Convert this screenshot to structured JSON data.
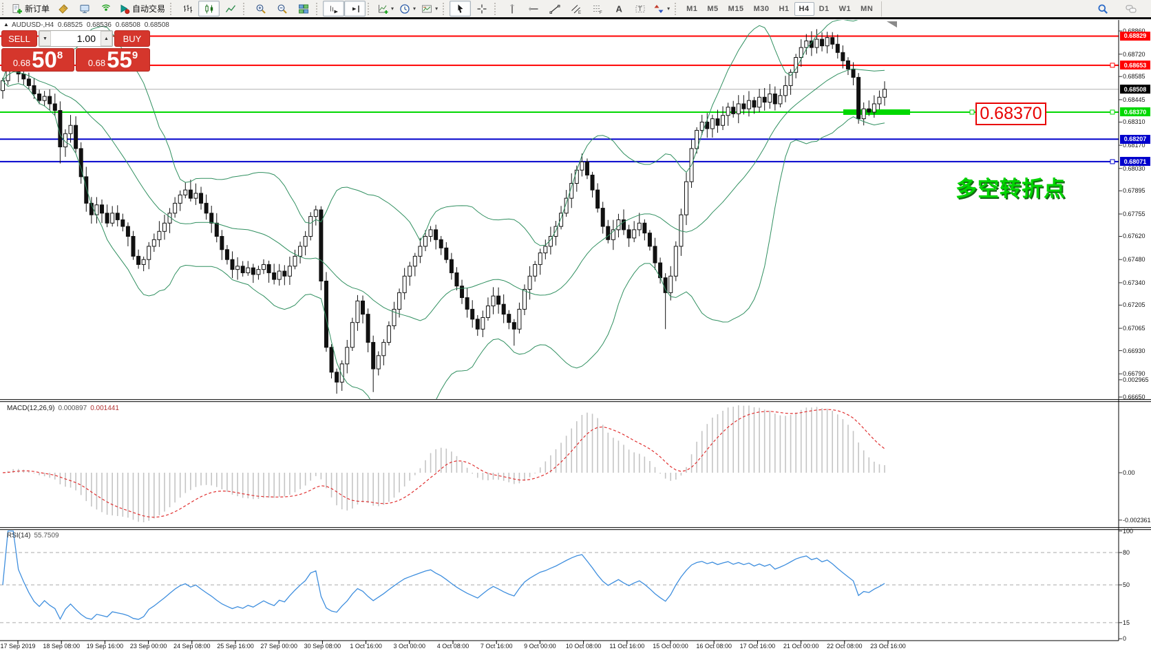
{
  "titlebar": {
    "symbol": "AUDUSD-,H4",
    "open": "0.68525",
    "high": "0.68536",
    "low": "0.68508",
    "close": "0.68508"
  },
  "toolbar": {
    "groups": [
      {
        "items": [
          {
            "name": "new-order-button",
            "icon": "new-order-icon",
            "label": "新订单"
          },
          {
            "name": "styler-button",
            "icon": "price-tag-icon"
          },
          {
            "name": "terminal-button",
            "icon": "monitor-icon"
          },
          {
            "name": "news-button",
            "icon": "signal-icon"
          },
          {
            "name": "autotrade-button",
            "icon": "autotrade-icon",
            "label": "自动交易"
          }
        ]
      },
      {
        "items": [
          {
            "name": "bar-chart-button",
            "icon": "bar-chart-icon"
          },
          {
            "name": "candlestick-button",
            "icon": "candlestick-icon",
            "active": true
          },
          {
            "name": "line-chart-button",
            "icon": "line-chart-icon"
          }
        ]
      },
      {
        "items": [
          {
            "name": "zoom-in-button",
            "icon": "zoom-in-icon"
          },
          {
            "name": "zoom-out-button",
            "icon": "zoom-out-icon"
          },
          {
            "name": "tile-windows-button",
            "icon": "tile-windows-icon"
          }
        ]
      },
      {
        "items": [
          {
            "name": "autoscroll-button",
            "icon": "autoscroll-icon",
            "active": true
          },
          {
            "name": "chart-shift-button",
            "icon": "chart-shift-icon",
            "active": true
          }
        ]
      },
      {
        "items": [
          {
            "name": "indicators-button",
            "icon": "indicators-icon",
            "dropdown": true
          },
          {
            "name": "periods-button",
            "icon": "clock-icon",
            "dropdown": true
          },
          {
            "name": "templates-button",
            "icon": "template-icon",
            "dropdown": true
          }
        ]
      },
      {
        "items": [
          {
            "name": "cursor-button",
            "icon": "cursor-icon",
            "active": true
          },
          {
            "name": "crosshair-button",
            "icon": "crosshair-icon"
          }
        ]
      },
      {
        "items": [
          {
            "name": "vertical-line-button",
            "icon": "vline-icon"
          },
          {
            "name": "horizontal-line-button",
            "icon": "hline-icon"
          },
          {
            "name": "trendline-button",
            "icon": "trendline-icon"
          },
          {
            "name": "channel-button",
            "icon": "channel-icon"
          },
          {
            "name": "fibonacci-button",
            "icon": "fibonacci-icon"
          },
          {
            "name": "text-button",
            "icon": "text-icon"
          },
          {
            "name": "text-label-button",
            "icon": "label-icon"
          },
          {
            "name": "arrows-button",
            "icon": "shapes-icon",
            "dropdown": true
          }
        ]
      }
    ],
    "timeframes": {
      "items": [
        "M1",
        "M5",
        "M15",
        "M30",
        "H1",
        "H4",
        "D1",
        "W1",
        "MN"
      ],
      "active": "H4"
    },
    "right_icons": [
      {
        "name": "search-button",
        "icon": "search-icon"
      },
      {
        "name": "chat-button",
        "icon": "chat-icon"
      }
    ]
  },
  "trade_panel": {
    "sell_label": "SELL",
    "buy_label": "BUY",
    "volume": "1.00",
    "sell": {
      "prefix": "0.68",
      "big": "50",
      "sup": "8"
    },
    "buy": {
      "prefix": "0.68",
      "big": "55",
      "sup": "9"
    }
  },
  "annotation": {
    "text": "多空转折点",
    "color": "#00d400"
  },
  "price_tag": {
    "text": "0.68370"
  },
  "macd_header": {
    "name": "MACD(12,26,9)",
    "value_main": "0.000897",
    "value_signal": "0.001441"
  },
  "rsi_header": {
    "name": "RSI(14)",
    "value": "55.7509"
  },
  "chart_data": [
    {
      "type": "candlestick",
      "symbol": "AUDUSD",
      "timeframe": "H4",
      "ylim": [
        0.6665,
        0.6886
      ],
      "y_ticks": [
        "0.68860",
        "0.68720",
        "0.68585",
        "0.68445",
        "0.68310",
        "0.68170",
        "0.68030",
        "0.67895",
        "0.67755",
        "0.67620",
        "0.67480",
        "0.67340",
        "0.67205",
        "0.67065",
        "0.66930",
        "0.66790",
        "0.66650"
      ],
      "x_labels": [
        "17 Sep 2019",
        "18 Sep 08:00",
        "19 Sep 16:00",
        "23 Sep 00:00",
        "24 Sep 08:00",
        "25 Sep 16:00",
        "27 Sep 00:00",
        "30 Sep 08:00",
        "1 Oct 16:00",
        "3 Oct 00:00",
        "4 Oct 08:00",
        "7 Oct 16:00",
        "9 Oct 00:00",
        "10 Oct 08:00",
        "11 Oct 16:00",
        "15 Oct 00:00",
        "16 Oct 08:00",
        "17 Oct 16:00",
        "21 Oct 00:00",
        "22 Oct 08:00",
        "23 Oct 16:00"
      ],
      "first_open": 0.685,
      "closes": [
        0.6856,
        0.6863,
        0.6865,
        0.686,
        0.6857,
        0.6853,
        0.6848,
        0.6844,
        0.68465,
        0.6842,
        0.6838,
        0.6816,
        0.6824,
        0.6829,
        0.6815,
        0.6798,
        0.6782,
        0.6775,
        0.6781,
        0.6776,
        0.677,
        0.6776,
        0.6772,
        0.6768,
        0.6762,
        0.675,
        0.6745,
        0.6748,
        0.6756,
        0.676,
        0.6765,
        0.677,
        0.6776,
        0.6782,
        0.6787,
        0.679,
        0.6785,
        0.6788,
        0.6782,
        0.6776,
        0.677,
        0.6762,
        0.6754,
        0.6748,
        0.6742,
        0.6744,
        0.674,
        0.6743,
        0.6739,
        0.6742,
        0.6745,
        0.674,
        0.6736,
        0.6741,
        0.6738,
        0.6744,
        0.675,
        0.6756,
        0.6762,
        0.6774,
        0.6778,
        0.6735,
        0.6695,
        0.668,
        0.6674,
        0.6685,
        0.6695,
        0.671,
        0.6723,
        0.6715,
        0.6698,
        0.6682,
        0.669,
        0.6698,
        0.6708,
        0.6718,
        0.6728,
        0.6738,
        0.6744,
        0.675,
        0.6756,
        0.6762,
        0.6766,
        0.676,
        0.6755,
        0.6748,
        0.674,
        0.6732,
        0.6725,
        0.6718,
        0.6712,
        0.6706,
        0.6713,
        0.672,
        0.6726,
        0.6721,
        0.6715,
        0.671,
        0.6706,
        0.6718,
        0.673,
        0.6738,
        0.6745,
        0.6752,
        0.6756,
        0.6762,
        0.6768,
        0.6776,
        0.6785,
        0.6794,
        0.6802,
        0.6807,
        0.6799,
        0.679,
        0.6779,
        0.6768,
        0.676,
        0.6766,
        0.6772,
        0.6766,
        0.6761,
        0.6766,
        0.677,
        0.6764,
        0.6756,
        0.6746,
        0.6737,
        0.6728,
        0.6738,
        0.6756,
        0.6775,
        0.6795,
        0.6815,
        0.6826,
        0.6831,
        0.6827,
        0.6833,
        0.6829,
        0.6835,
        0.684,
        0.6836,
        0.6842,
        0.6839,
        0.6844,
        0.684,
        0.6846,
        0.6843,
        0.6848,
        0.6842,
        0.6847,
        0.6853,
        0.6861,
        0.687,
        0.6876,
        0.688,
        0.6876,
        0.6881,
        0.6877,
        0.6882,
        0.6878,
        0.6873,
        0.6868,
        0.6863,
        0.6858,
        0.6833,
        0.6839,
        0.6837,
        0.6842,
        0.6846,
        0.68508
      ],
      "wick_overrides": {
        "11": {
          "low": 0.6806
        },
        "64": {
          "low": 0.6667
        },
        "71": {
          "low": 0.6668
        },
        "98": {
          "low": 0.6696
        },
        "111": {
          "high": 0.6812
        },
        "127": {
          "low": 0.6706
        },
        "158": {
          "high": 0.68855
        },
        "164": {
          "low": 0.683
        }
      },
      "overlays": [
        {
          "name": "Bollinger Bands(20,2)",
          "color": "#2f8f5f"
        }
      ],
      "horizontal_lines": [
        {
          "price": 0.68829,
          "color": "#ff0000",
          "width": 2
        },
        {
          "price": 0.68653,
          "color": "#ff0000",
          "width": 2,
          "handle_axis": true
        },
        {
          "price": 0.6837,
          "color": "#00d800",
          "width": 2,
          "handle_axis": true,
          "handle_x": 1409,
          "thick_segment": [
            1225,
            1322
          ]
        },
        {
          "price": 0.68207,
          "color": "#0000cc",
          "width": 2
        },
        {
          "price": 0.68071,
          "color": "#0000cc",
          "width": 2,
          "handle_axis": true
        }
      ],
      "current_price": 0.68508
    },
    {
      "type": "macd",
      "label": "MACD(12,26,9)",
      "params": [
        12,
        26,
        9
      ],
      "values": {
        "main": 0.000897,
        "signal": 0.001441
      },
      "y_ticks": [
        {
          "text": "0.002965",
          "value": 0.002965
        },
        {
          "text": "0.00",
          "value": 0
        },
        {
          "text": "-0.002361",
          "value": -0.002361
        }
      ],
      "histogram_color": "#c4c4c4",
      "signal_color": "#e03030"
    },
    {
      "type": "rsi",
      "label": "RSI(14)",
      "period": 14,
      "value": 55.7509,
      "y_ticks": [
        100,
        80,
        50,
        15,
        0
      ],
      "dashed_levels": [
        80,
        50,
        15
      ],
      "line_color": "#3e8ede"
    }
  ]
}
